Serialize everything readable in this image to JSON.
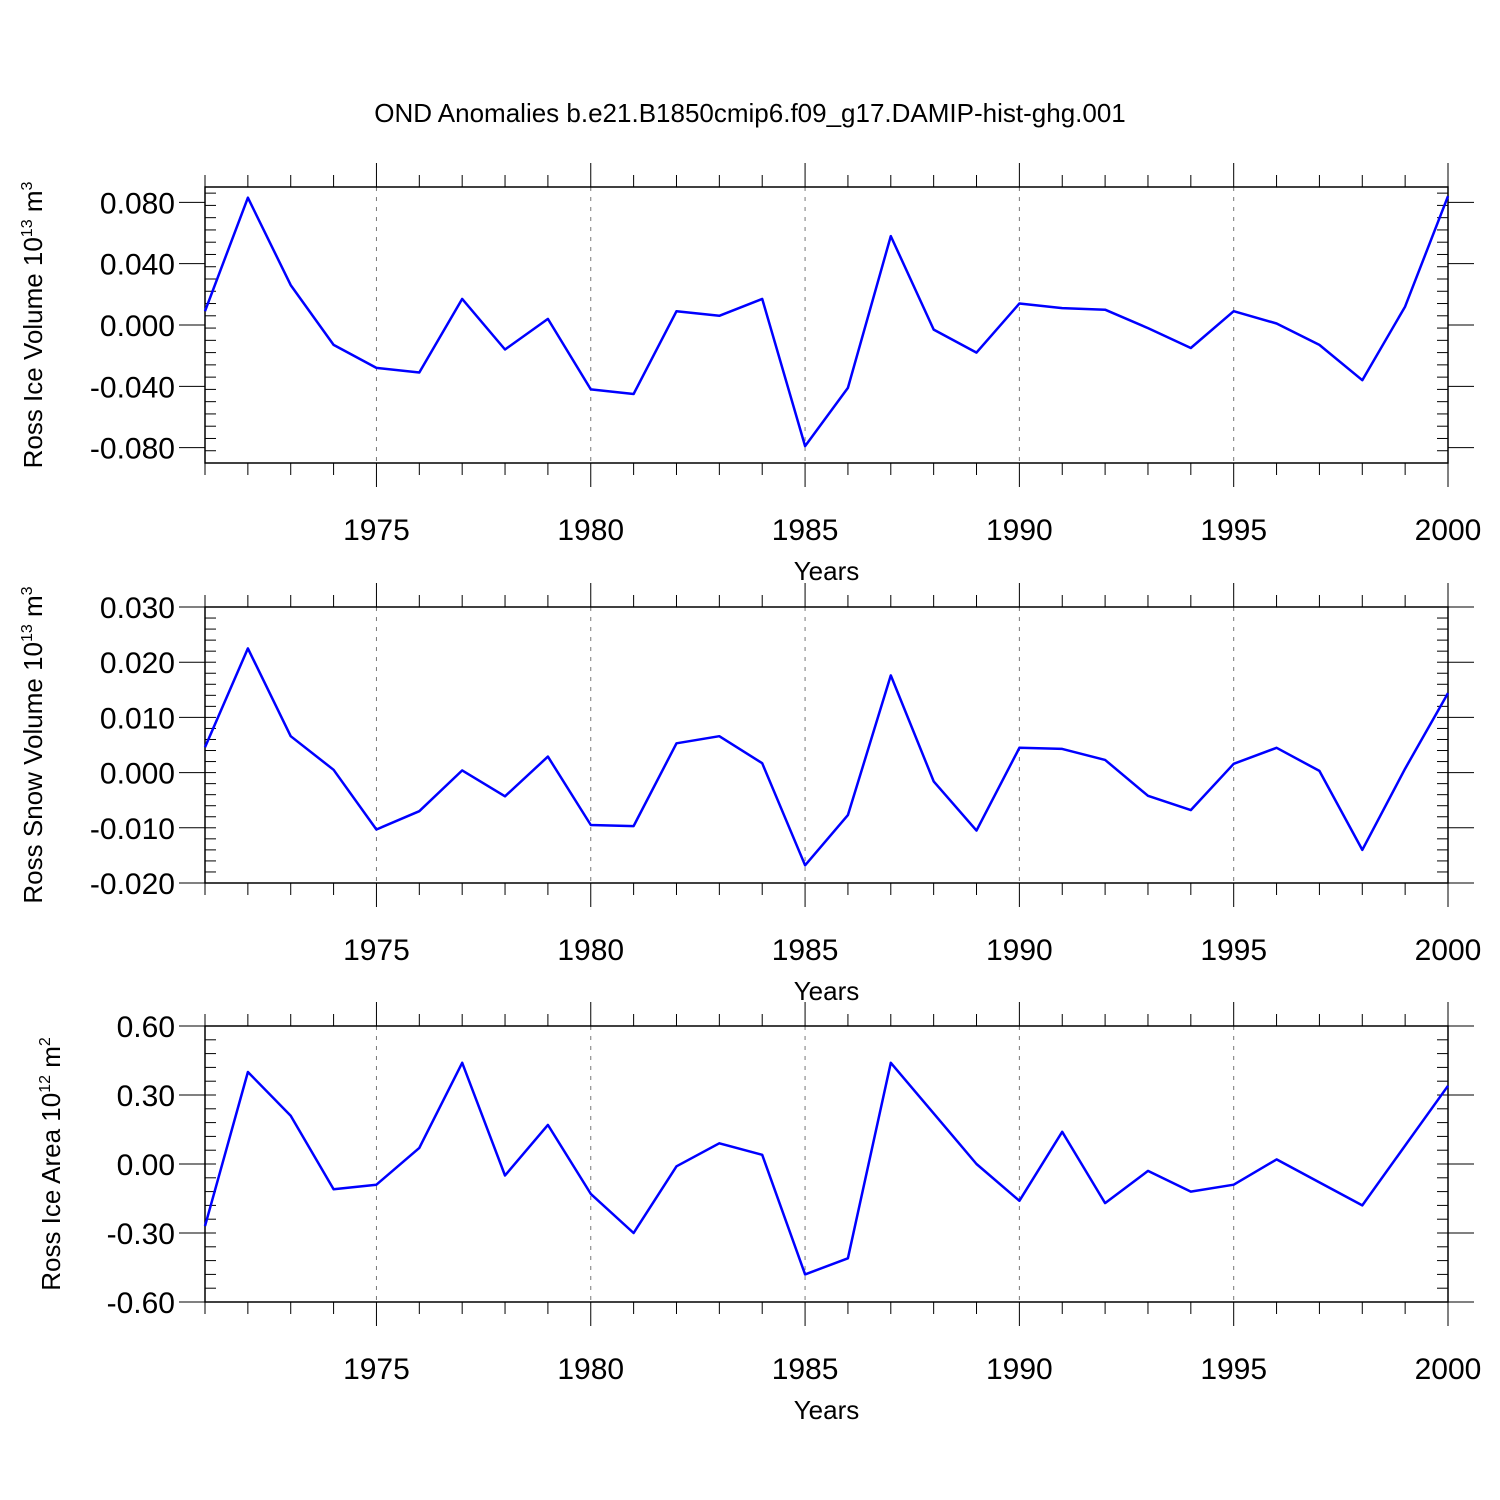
{
  "title": "OND Anomalies b.e21.B1850cmip6.f09_g17.DAMIP-hist-ghg.001",
  "colors": {
    "line": "#0000ff",
    "axis": "#000000",
    "grid": "#777777"
  },
  "chart_data": [
    {
      "type": "line",
      "xlabel": "Years",
      "ylabel": "Ross Ice Volume 10",
      "ylabel_exp": "13",
      "ylabel_unit": " m",
      "ylabel_unit_exp": "3",
      "xlim": [
        1971,
        2000
      ],
      "ylim": [
        -0.09,
        0.09
      ],
      "x_ticks": [
        1975,
        1980,
        1985,
        1990,
        1995,
        2000
      ],
      "y_ticks": [
        -0.08,
        -0.04,
        0.0,
        0.04,
        0.08
      ],
      "y_tick_labels": [
        "-0.080",
        "-0.040",
        "0.000",
        "0.040",
        "0.080"
      ],
      "grid": "vertical dashed at major x ticks",
      "x": [
        1971,
        1972,
        1973,
        1974,
        1975,
        1976,
        1977,
        1978,
        1979,
        1980,
        1981,
        1982,
        1983,
        1984,
        1985,
        1986,
        1987,
        1988,
        1989,
        1990,
        1991,
        1992,
        1993,
        1994,
        1995,
        1996,
        1997,
        1998,
        1999,
        2000
      ],
      "values": [
        0.009,
        0.083,
        0.026,
        -0.013,
        -0.028,
        -0.031,
        0.017,
        -0.016,
        0.004,
        -0.042,
        -0.045,
        0.009,
        0.006,
        0.017,
        -0.079,
        -0.041,
        0.058,
        -0.003,
        -0.018,
        0.014,
        0.011,
        0.01,
        -0.002,
        -0.015,
        0.009,
        0.001,
        -0.013,
        -0.036,
        0.012,
        0.084
      ]
    },
    {
      "type": "line",
      "xlabel": "Years",
      "ylabel": "Ross Snow Volume 10",
      "ylabel_exp": "13",
      "ylabel_unit": " m",
      "ylabel_unit_exp": "3",
      "xlim": [
        1971,
        2000
      ],
      "ylim": [
        -0.02,
        0.03
      ],
      "x_ticks": [
        1975,
        1980,
        1985,
        1990,
        1995,
        2000
      ],
      "y_ticks": [
        -0.02,
        -0.01,
        0.0,
        0.01,
        0.02,
        0.03
      ],
      "y_tick_labels": [
        "-0.020",
        "-0.010",
        "0.000",
        "0.010",
        "0.020",
        "0.030"
      ],
      "grid": "vertical dashed at major x ticks",
      "x": [
        1971,
        1972,
        1973,
        1974,
        1975,
        1976,
        1977,
        1978,
        1979,
        1980,
        1981,
        1982,
        1983,
        1984,
        1985,
        1986,
        1987,
        1988,
        1989,
        1990,
        1991,
        1992,
        1993,
        1994,
        1995,
        1996,
        1997,
        1998,
        1999,
        2000
      ],
      "values": [
        0.0046,
        0.0225,
        0.0066,
        0.0005,
        -0.0103,
        -0.007,
        0.0004,
        -0.0043,
        0.0029,
        -0.0095,
        -0.0097,
        0.0053,
        0.0066,
        0.0017,
        -0.0168,
        -0.0077,
        0.0176,
        -0.0016,
        -0.0105,
        0.0045,
        0.0043,
        0.0023,
        -0.0042,
        -0.0068,
        0.0016,
        0.0045,
        0.0003,
        -0.014,
        0.0007,
        0.0144
      ]
    },
    {
      "type": "line",
      "xlabel": "Years",
      "ylabel": "Ross Ice Area 10",
      "ylabel_exp": "12",
      "ylabel_unit": " m",
      "ylabel_unit_exp": "2",
      "xlim": [
        1971,
        2000
      ],
      "ylim": [
        -0.6,
        0.6
      ],
      "x_ticks": [
        1975,
        1980,
        1985,
        1990,
        1995,
        2000
      ],
      "y_ticks": [
        -0.6,
        -0.3,
        0.0,
        0.3,
        0.6
      ],
      "y_tick_labels": [
        "-0.60",
        "-0.30",
        "0.00",
        "0.30",
        "0.60"
      ],
      "grid": "vertical dashed at major x ticks",
      "x": [
        1971,
        1972,
        1973,
        1974,
        1975,
        1976,
        1977,
        1978,
        1979,
        1980,
        1981,
        1982,
        1983,
        1984,
        1985,
        1986,
        1987,
        1988,
        1989,
        1990,
        1991,
        1992,
        1993,
        1994,
        1995,
        1996,
        1997,
        1998,
        1999,
        2000
      ],
      "values": [
        -0.27,
        0.4,
        0.21,
        -0.11,
        -0.09,
        0.07,
        0.44,
        -0.05,
        0.17,
        -0.13,
        -0.3,
        -0.01,
        0.09,
        0.04,
        -0.48,
        -0.41,
        0.44,
        0.22,
        0.0,
        -0.16,
        0.14,
        -0.17,
        -0.03,
        -0.12,
        -0.09,
        0.02,
        -0.08,
        -0.18,
        0.08,
        0.34
      ]
    }
  ]
}
